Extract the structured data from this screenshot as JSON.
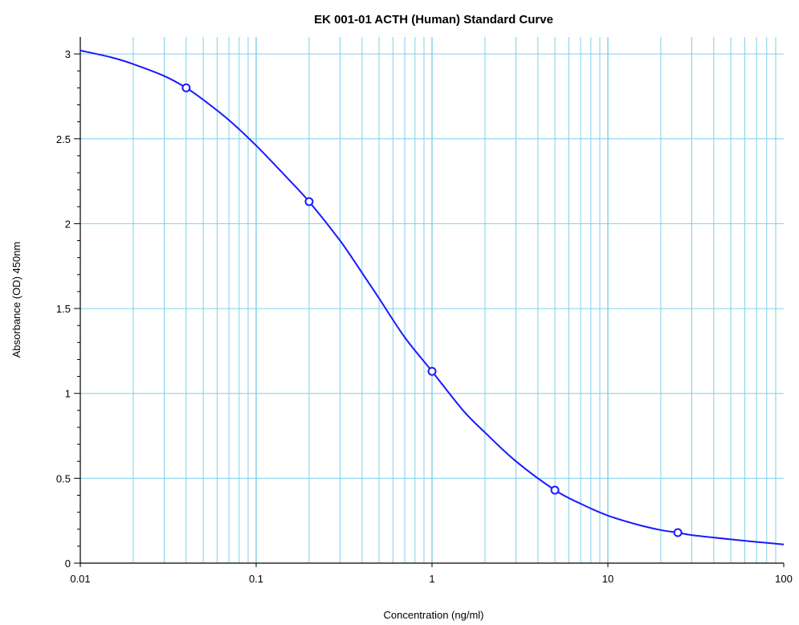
{
  "chart_data": {
    "type": "scatter",
    "title": "EK 001-01 ACTH (Human) Standard Curve",
    "xlabel": "Concentration (ng/ml)",
    "ylabel": "Absorbance (OD) 450nm",
    "x_scale": "log",
    "xlim": [
      0.01,
      100
    ],
    "ylim": [
      0,
      3.1
    ],
    "x_tick_labels": [
      "0.01",
      "0.1",
      "1",
      "10",
      "100"
    ],
    "y_tick_labels": [
      "0",
      "0.5",
      "1",
      "1.5",
      "2",
      "2.5",
      "3"
    ],
    "grid": true,
    "series": [
      {
        "kind": "points",
        "x": [
          0.04,
          0.2,
          1,
          5,
          25
        ],
        "y": [
          2.8,
          2.13,
          1.13,
          0.43,
          0.18
        ]
      },
      {
        "kind": "fit-curve",
        "x": [
          0.01,
          0.015,
          0.02,
          0.03,
          0.04,
          0.05,
          0.07,
          0.1,
          0.15,
          0.2,
          0.3,
          0.4,
          0.5,
          0.7,
          1,
          1.5,
          2,
          3,
          5,
          7,
          10,
          15,
          20,
          25,
          30,
          50,
          70,
          100
        ],
        "y": [
          3.02,
          2.98,
          2.94,
          2.87,
          2.8,
          2.73,
          2.61,
          2.46,
          2.27,
          2.13,
          1.9,
          1.71,
          1.56,
          1.33,
          1.13,
          0.9,
          0.77,
          0.6,
          0.43,
          0.35,
          0.28,
          0.225,
          0.195,
          0.18,
          0.165,
          0.14,
          0.125,
          0.11
        ]
      }
    ],
    "colors": {
      "curve": "#1a1aff",
      "points": "#1a1aff",
      "grid": "#7fd0e8",
      "axis": "#000000"
    }
  }
}
